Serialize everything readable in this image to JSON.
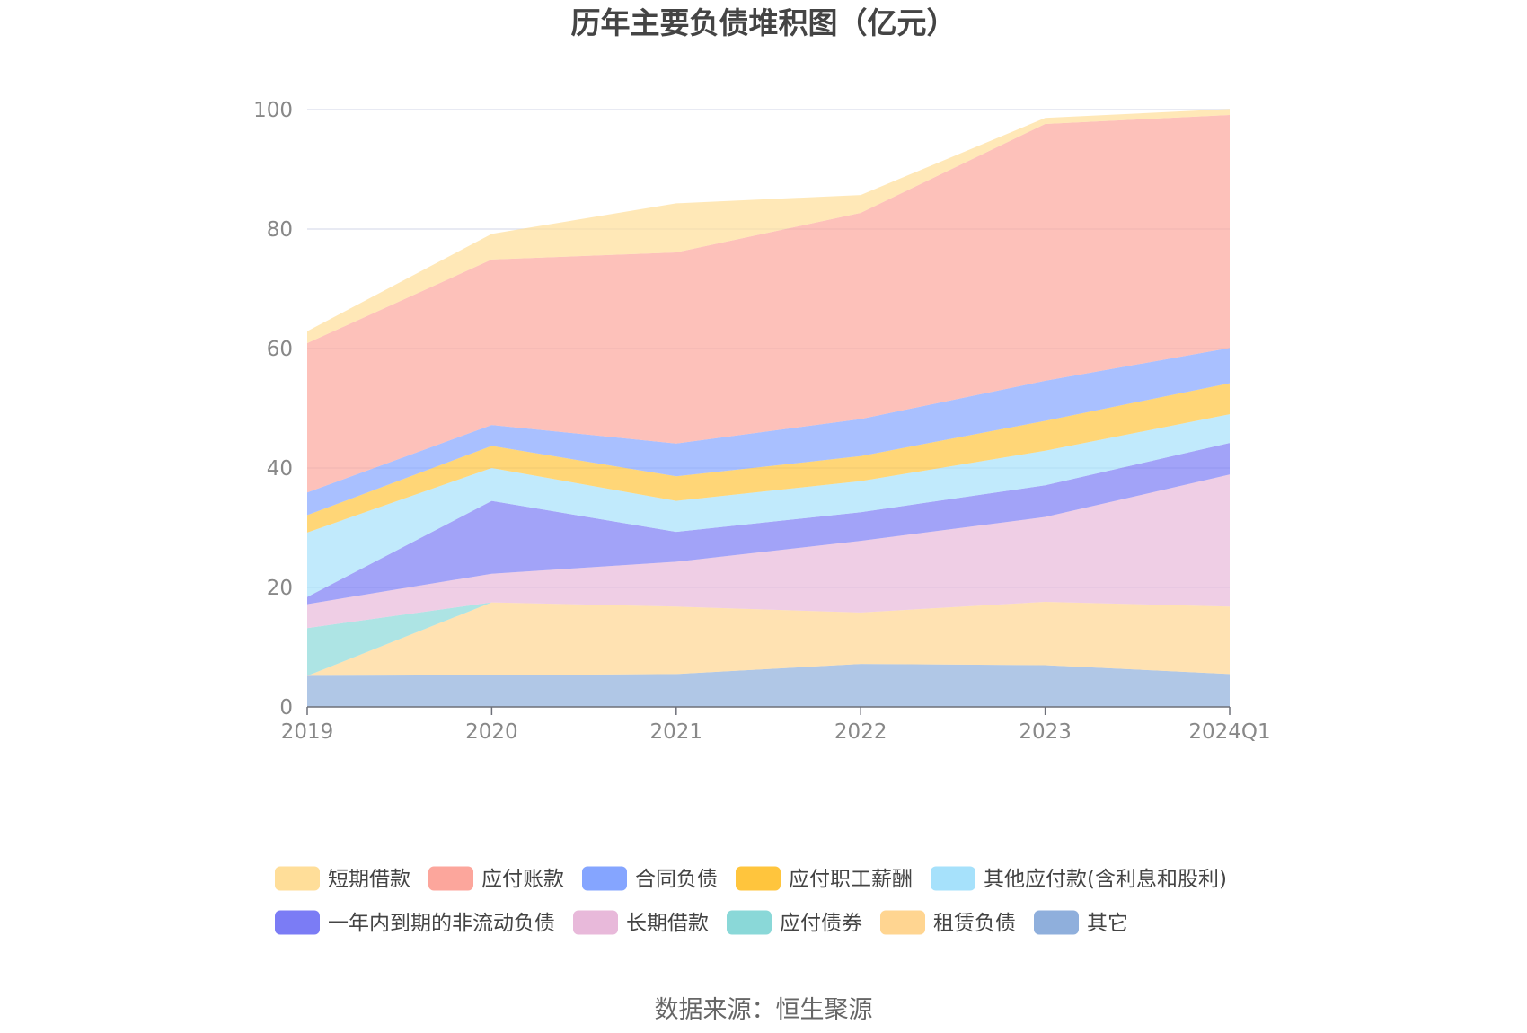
{
  "chart_data": {
    "type": "area",
    "stacked": true,
    "title": "历年主要负债堆积图（亿元）",
    "xlabel": "",
    "ylabel": "",
    "categories": [
      "2019",
      "2020",
      "2021",
      "2022",
      "2023",
      "2024Q1"
    ],
    "ylim": [
      0,
      100
    ],
    "yticks": [
      0,
      20,
      40,
      60,
      80,
      100
    ],
    "grid": true,
    "legend_position": "bottom",
    "series": [
      {
        "name": "其它",
        "color": "#8fafdc",
        "values": [
          5.2,
          5.3,
          5.5,
          7.2,
          7.0,
          5.5
        ]
      },
      {
        "name": "租赁负债",
        "color": "#ffd591",
        "values": [
          0.0,
          12.2,
          11.3,
          8.6,
          10.6,
          11.3
        ]
      },
      {
        "name": "应付债券",
        "color": "#8ad8d8",
        "values": [
          8.0,
          0.0,
          0.0,
          0.0,
          0.0,
          0.0
        ]
      },
      {
        "name": "长期借款",
        "color": "#e8b9da",
        "values": [
          4.0,
          4.8,
          7.5,
          12.0,
          14.2,
          22.1
        ]
      },
      {
        "name": "一年内到期的非流动负债",
        "color": "#7b7cf5",
        "values": [
          1.2,
          12.2,
          5.0,
          4.8,
          5.3,
          5.3
        ]
      },
      {
        "name": "其他应付款(含利息和股利)",
        "color": "#a6e1fb",
        "values": [
          10.8,
          5.5,
          5.2,
          5.2,
          5.8,
          4.8
        ]
      },
      {
        "name": "应付职工薪酬",
        "color": "#ffc53d",
        "values": [
          2.9,
          3.7,
          4.1,
          4.2,
          5.0,
          5.2
        ]
      },
      {
        "name": "合同负债",
        "color": "#85a5ff",
        "values": [
          3.8,
          3.5,
          5.5,
          6.2,
          6.7,
          5.9
        ]
      },
      {
        "name": "应付账款",
        "color": "#fca69c",
        "values": [
          25.0,
          27.7,
          32.0,
          34.5,
          43.0,
          39.0
        ]
      },
      {
        "name": "短期借款",
        "color": "#ffde99",
        "values": [
          2.0,
          4.3,
          8.2,
          3.0,
          1.0,
          1.0
        ]
      }
    ],
    "legend_order": [
      "短期借款",
      "应付账款",
      "合同负债",
      "应付职工薪酬",
      "其他应付款(含利息和股利)",
      "一年内到期的非流动负债",
      "长期借款",
      "应付债券",
      "租赁负债",
      "其它"
    ]
  },
  "source": "数据来源：恒生聚源"
}
